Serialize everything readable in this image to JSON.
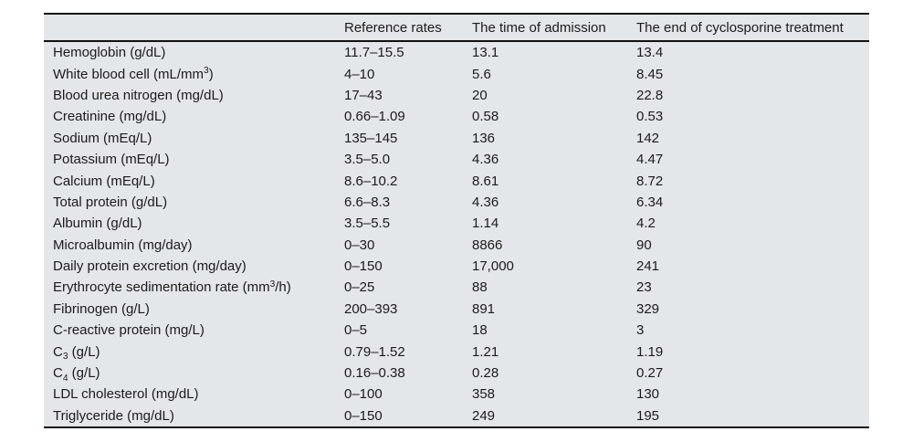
{
  "colors": {
    "page_bg": "#ffffff",
    "table_bg": "#e3e7e9",
    "rule": "#111111",
    "text": "#1b1b1b"
  },
  "table": {
    "columns": [
      "",
      "Reference rates",
      "The time of admission",
      "The end of cyclosporine treatment"
    ],
    "rows": [
      {
        "label": "Hemoglobin (g/dL)",
        "values": [
          "11.7–15.5",
          "13.1",
          "13.4"
        ]
      },
      {
        "label": "White blood cell (mL/mm^{3})",
        "values": [
          "4–10",
          "5.6",
          "8.45"
        ]
      },
      {
        "label": "Blood urea nitrogen (mg/dL)",
        "values": [
          "17–43",
          "20",
          "22.8"
        ]
      },
      {
        "label": "Creatinine (mg/dL)",
        "values": [
          "0.66–1.09",
          "0.58",
          "0.53"
        ]
      },
      {
        "label": "Sodium (mEq/L)",
        "values": [
          "135–145",
          "136",
          "142"
        ]
      },
      {
        "label": "Potassium (mEq/L)",
        "values": [
          "3.5–5.0",
          "4.36",
          "4.47"
        ]
      },
      {
        "label": "Calcium (mEq/L)",
        "values": [
          "8.6–10.2",
          "8.61",
          "8.72"
        ]
      },
      {
        "label": "Total protein (g/dL)",
        "values": [
          "6.6–8.3",
          "4.36",
          "6.34"
        ]
      },
      {
        "label": "Albumin (g/dL)",
        "values": [
          "3.5–5.5",
          "1.14",
          "4.2"
        ]
      },
      {
        "label": "Microalbumin (mg/day)",
        "values": [
          "0–30",
          "8866",
          "90"
        ]
      },
      {
        "label": "Daily protein excretion (mg/day)",
        "values": [
          "0–150",
          "17,000",
          "241"
        ]
      },
      {
        "label": "Erythrocyte sedimentation rate (mm^{3}/h)",
        "values": [
          "0–25",
          "88",
          "23"
        ]
      },
      {
        "label": "Fibrinogen (g/L)",
        "values": [
          "200–393",
          "891",
          "329"
        ]
      },
      {
        "label": "C-reactive protein (mg/L)",
        "values": [
          "0–5",
          "18",
          "3"
        ]
      },
      {
        "label": "C_{3} (g/L)",
        "values": [
          "0.79–1.52",
          "1.21",
          "1.19"
        ]
      },
      {
        "label": "C_{4} (g/L)",
        "values": [
          "0.16–0.38",
          "0.28",
          "0.27"
        ]
      },
      {
        "label": "LDL cholesterol (mg/dL)",
        "values": [
          "0–100",
          "358",
          "130"
        ]
      },
      {
        "label": "Triglyceride (mg/dL)",
        "values": [
          "0–150",
          "249",
          "195"
        ]
      }
    ]
  }
}
